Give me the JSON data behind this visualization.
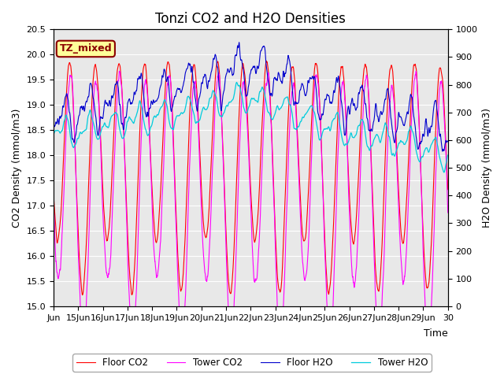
{
  "title": "Tonzi CO2 and H2O Densities",
  "xlabel": "Time",
  "ylabel_left": "CO2 Density (mmol/m3)",
  "ylabel_right": "H2O Density (mmol/m3)",
  "ylim_left": [
    15.0,
    20.5
  ],
  "ylim_right": [
    0,
    1000
  ],
  "annotation": "TZ_mixed",
  "annotation_color": "#8B0000",
  "annotation_bg": "#FFFF99",
  "annotation_border": "#8B0000",
  "colors": {
    "floor_co2": "#FF0000",
    "tower_co2": "#FF00FF",
    "floor_h2o": "#0000CD",
    "tower_h2o": "#00CCDD"
  },
  "legend_labels": [
    "Floor CO2",
    "Tower CO2",
    "Floor H2O",
    "Tower H2O"
  ],
  "start_day": 14.0,
  "end_day": 30.0,
  "n_points": 3840,
  "background_color": "#E8E8E8",
  "fig_bg": "#FFFFFF",
  "gridline_color": "#FFFFFF",
  "title_fontsize": 12,
  "tick_fontsize": 8,
  "label_fontsize": 9
}
